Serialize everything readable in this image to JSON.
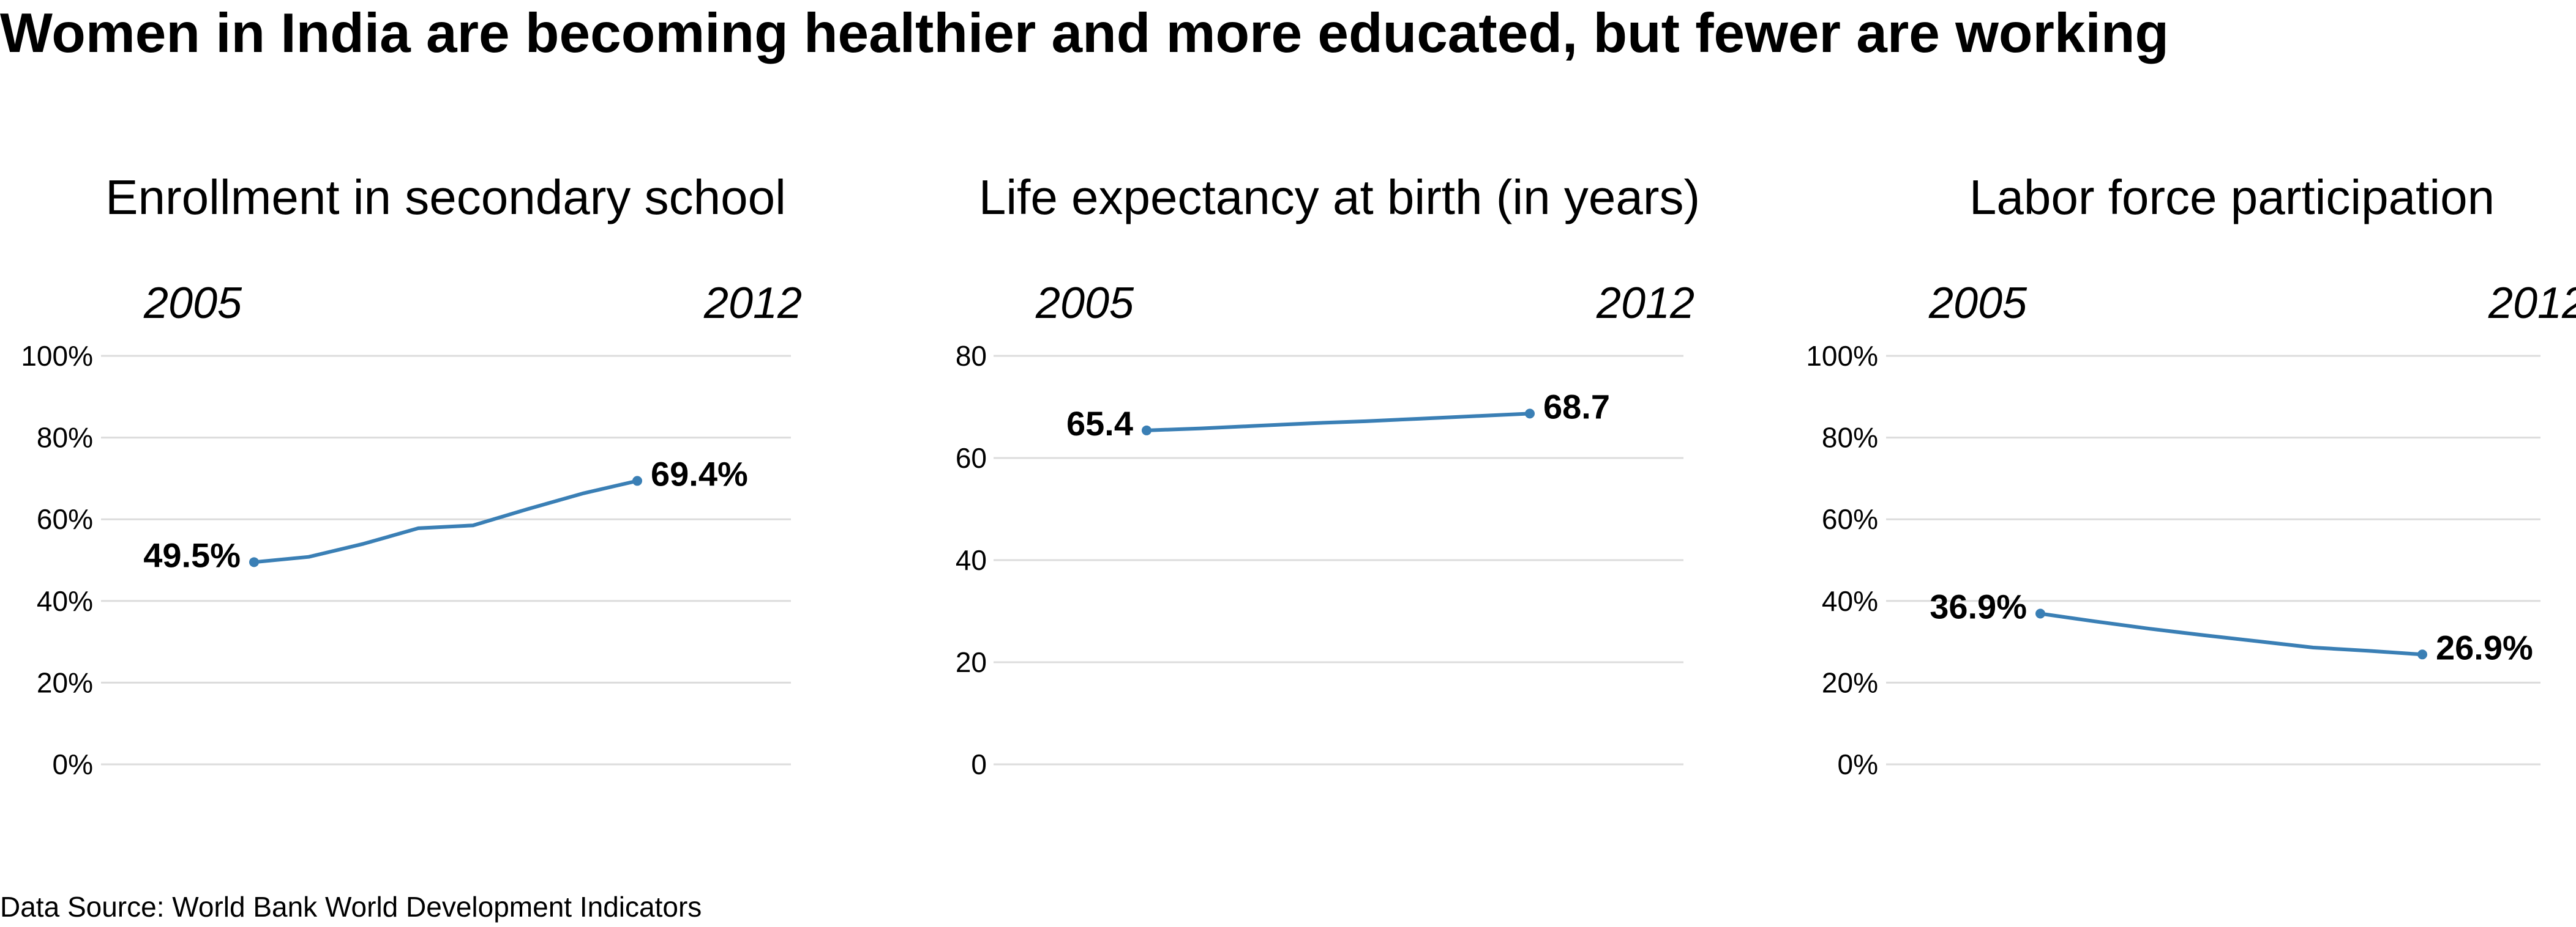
{
  "title": "Women in India are becoming healthier and more educated, but fewer are working",
  "source": "Data Source: World Bank World Development Indicators",
  "colors": {
    "line": "#3a7fb5",
    "grid": "#dcdcdc"
  },
  "chart_data": [
    {
      "type": "line",
      "title": "Enrollment in secondary school",
      "x": [
        2005,
        2006,
        2007,
        2008,
        2009,
        2010,
        2011,
        2012
      ],
      "values": [
        49.5,
        50.8,
        54.0,
        57.8,
        58.5,
        62.5,
        66.3,
        69.4
      ],
      "ylim": [
        0,
        100
      ],
      "yticks": [
        0,
        20,
        40,
        60,
        80,
        100
      ],
      "yticklabels": [
        "0%",
        "20%",
        "40%",
        "60%",
        "80%",
        "100%"
      ],
      "start_label": "49.5%",
      "end_label": "69.4%",
      "start_year": "2005",
      "end_year": "2012",
      "grid": true
    },
    {
      "type": "line",
      "title": "Life expectancy at birth (in years)",
      "x": [
        2005,
        2006,
        2007,
        2008,
        2009,
        2010,
        2011,
        2012
      ],
      "values": [
        65.4,
        65.8,
        66.3,
        66.8,
        67.2,
        67.7,
        68.2,
        68.7
      ],
      "ylim": [
        0,
        80
      ],
      "yticks": [
        0,
        20,
        40,
        60,
        80
      ],
      "yticklabels": [
        "0",
        "20",
        "40",
        "60",
        "80"
      ],
      "start_label": "65.4",
      "end_label": "68.7",
      "start_year": "2005",
      "end_year": "2012",
      "grid": true
    },
    {
      "type": "line",
      "title": "Labor force participation",
      "x": [
        2005,
        2006,
        2007,
        2008,
        2009,
        2010,
        2011,
        2012
      ],
      "values": [
        36.9,
        35.0,
        33.2,
        31.6,
        30.1,
        28.6,
        27.8,
        26.9
      ],
      "ylim": [
        0,
        100
      ],
      "yticks": [
        0,
        20,
        40,
        60,
        80,
        100
      ],
      "yticklabels": [
        "0%",
        "20%",
        "40%",
        "60%",
        "80%",
        "100%"
      ],
      "start_label": "36.9%",
      "end_label": "26.9%",
      "start_year": "2005",
      "end_year": "2012",
      "grid": true
    }
  ]
}
